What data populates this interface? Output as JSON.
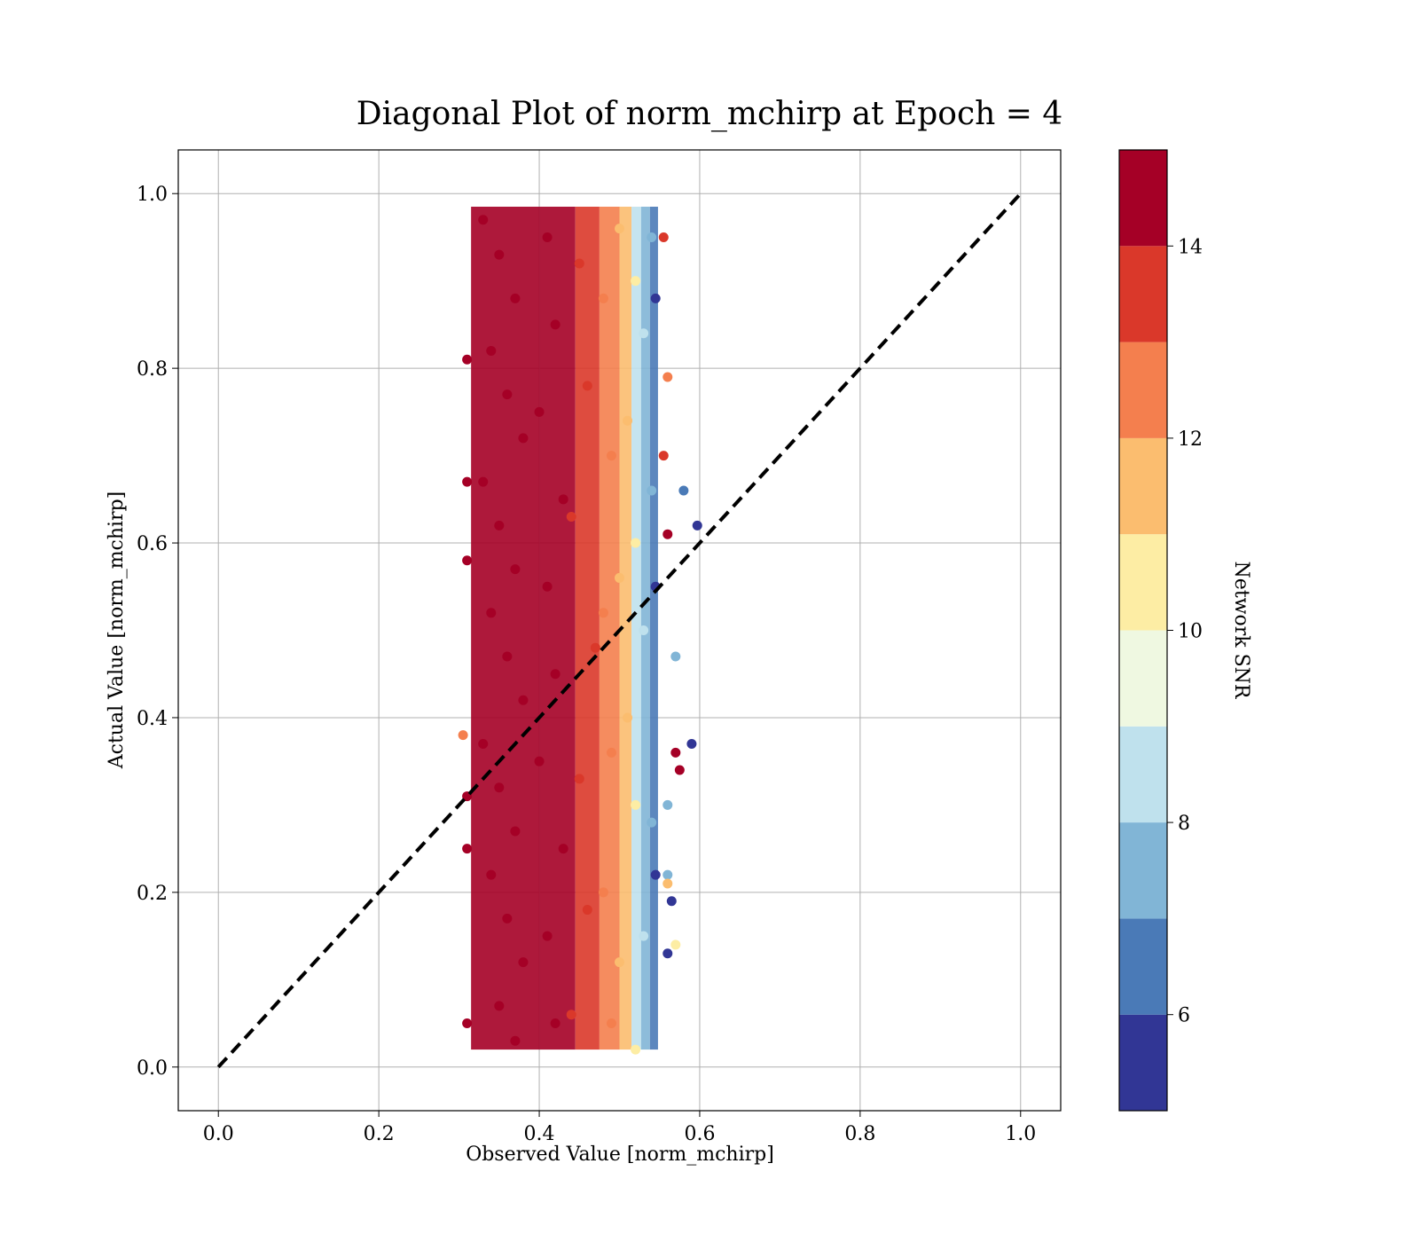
{
  "chart_data": {
    "type": "scatter",
    "title": "Diagonal Plot of norm_mchirp at Epoch = 4",
    "xlabel": "Observed Value [norm_mchirp]",
    "ylabel": "Actual Value [norm_mchirp]",
    "xlim": [
      -0.05,
      1.05
    ],
    "ylim": [
      -0.05,
      1.05
    ],
    "xticks": [
      0.0,
      0.2,
      0.4,
      0.6,
      0.8,
      1.0
    ],
    "yticks": [
      0.0,
      0.2,
      0.4,
      0.6,
      0.8,
      1.0
    ],
    "xtick_labels": [
      "0.0",
      "0.2",
      "0.4",
      "0.6",
      "0.8",
      "1.0"
    ],
    "ytick_labels": [
      "0.0",
      "0.2",
      "0.4",
      "0.6",
      "0.8",
      "1.0"
    ],
    "grid": true,
    "reference_line": {
      "style": "dashed",
      "color": "#000000",
      "x": [
        0.0,
        1.0
      ],
      "y": [
        0.0,
        1.0
      ]
    },
    "colorbar": {
      "label": "Network SNR",
      "range": [
        5,
        15
      ],
      "ticks": [
        6,
        8,
        10,
        12,
        14
      ],
      "tick_labels": [
        "6",
        "8",
        "10",
        "12",
        "14"
      ],
      "bands": [
        {
          "from": 5,
          "to": 6,
          "color": "#313695"
        },
        {
          "from": 6,
          "to": 7,
          "color": "#4a7ab7"
        },
        {
          "from": 7,
          "to": 8,
          "color": "#81b5d6"
        },
        {
          "from": 8,
          "to": 9,
          "color": "#bfe1ed"
        },
        {
          "from": 9,
          "to": 10,
          "color": "#eff8e1"
        },
        {
          "from": 10,
          "to": 11,
          "color": "#fdeda4"
        },
        {
          "from": 11,
          "to": 12,
          "color": "#fbbd6f"
        },
        {
          "from": 12,
          "to": 13,
          "color": "#f47f4e"
        },
        {
          "from": 13,
          "to": 14,
          "color": "#da382a"
        },
        {
          "from": 14,
          "to": 15,
          "color": "#a50026"
        }
      ]
    },
    "points": [
      {
        "x": 0.33,
        "y": 0.97,
        "snr": 15
      },
      {
        "x": 0.35,
        "y": 0.93,
        "snr": 15
      },
      {
        "x": 0.37,
        "y": 0.88,
        "snr": 15
      },
      {
        "x": 0.34,
        "y": 0.82,
        "snr": 15
      },
      {
        "x": 0.36,
        "y": 0.77,
        "snr": 15
      },
      {
        "x": 0.38,
        "y": 0.72,
        "snr": 15
      },
      {
        "x": 0.33,
        "y": 0.67,
        "snr": 15
      },
      {
        "x": 0.35,
        "y": 0.62,
        "snr": 15
      },
      {
        "x": 0.37,
        "y": 0.57,
        "snr": 15
      },
      {
        "x": 0.34,
        "y": 0.52,
        "snr": 15
      },
      {
        "x": 0.36,
        "y": 0.47,
        "snr": 15
      },
      {
        "x": 0.38,
        "y": 0.42,
        "snr": 15
      },
      {
        "x": 0.33,
        "y": 0.37,
        "snr": 15
      },
      {
        "x": 0.35,
        "y": 0.32,
        "snr": 15
      },
      {
        "x": 0.37,
        "y": 0.27,
        "snr": 15
      },
      {
        "x": 0.34,
        "y": 0.22,
        "snr": 15
      },
      {
        "x": 0.36,
        "y": 0.17,
        "snr": 15
      },
      {
        "x": 0.38,
        "y": 0.12,
        "snr": 15
      },
      {
        "x": 0.35,
        "y": 0.07,
        "snr": 15
      },
      {
        "x": 0.37,
        "y": 0.03,
        "snr": 15
      },
      {
        "x": 0.41,
        "y": 0.95,
        "snr": 14.5
      },
      {
        "x": 0.42,
        "y": 0.85,
        "snr": 14.5
      },
      {
        "x": 0.4,
        "y": 0.75,
        "snr": 14.5
      },
      {
        "x": 0.43,
        "y": 0.65,
        "snr": 14.5
      },
      {
        "x": 0.41,
        "y": 0.55,
        "snr": 14.5
      },
      {
        "x": 0.42,
        "y": 0.45,
        "snr": 14.5
      },
      {
        "x": 0.4,
        "y": 0.35,
        "snr": 14.5
      },
      {
        "x": 0.43,
        "y": 0.25,
        "snr": 14.5
      },
      {
        "x": 0.41,
        "y": 0.15,
        "snr": 14.5
      },
      {
        "x": 0.42,
        "y": 0.05,
        "snr": 14.5
      },
      {
        "x": 0.45,
        "y": 0.92,
        "snr": 13.5
      },
      {
        "x": 0.46,
        "y": 0.78,
        "snr": 13.5
      },
      {
        "x": 0.44,
        "y": 0.63,
        "snr": 13.5
      },
      {
        "x": 0.47,
        "y": 0.48,
        "snr": 13.5
      },
      {
        "x": 0.45,
        "y": 0.33,
        "snr": 13.5
      },
      {
        "x": 0.46,
        "y": 0.18,
        "snr": 13.5
      },
      {
        "x": 0.44,
        "y": 0.06,
        "snr": 13.5
      },
      {
        "x": 0.48,
        "y": 0.88,
        "snr": 12.5
      },
      {
        "x": 0.49,
        "y": 0.7,
        "snr": 12.5
      },
      {
        "x": 0.48,
        "y": 0.52,
        "snr": 12.5
      },
      {
        "x": 0.49,
        "y": 0.36,
        "snr": 12.5
      },
      {
        "x": 0.48,
        "y": 0.2,
        "snr": 12.5
      },
      {
        "x": 0.49,
        "y": 0.05,
        "snr": 12.5
      },
      {
        "x": 0.5,
        "y": 0.96,
        "snr": 11.5
      },
      {
        "x": 0.51,
        "y": 0.74,
        "snr": 11.5
      },
      {
        "x": 0.5,
        "y": 0.56,
        "snr": 11.5
      },
      {
        "x": 0.51,
        "y": 0.4,
        "snr": 11.5
      },
      {
        "x": 0.5,
        "y": 0.12,
        "snr": 11.5
      },
      {
        "x": 0.52,
        "y": 0.9,
        "snr": 10.5
      },
      {
        "x": 0.52,
        "y": 0.6,
        "snr": 10.5
      },
      {
        "x": 0.52,
        "y": 0.3,
        "snr": 10.5
      },
      {
        "x": 0.52,
        "y": 0.02,
        "snr": 10.5
      },
      {
        "x": 0.53,
        "y": 0.84,
        "snr": 8.5
      },
      {
        "x": 0.53,
        "y": 0.5,
        "snr": 8.5
      },
      {
        "x": 0.53,
        "y": 0.15,
        "snr": 8.5
      },
      {
        "x": 0.54,
        "y": 0.95,
        "snr": 7.5
      },
      {
        "x": 0.54,
        "y": 0.66,
        "snr": 7.5
      },
      {
        "x": 0.54,
        "y": 0.28,
        "snr": 7.5
      },
      {
        "x": 0.545,
        "y": 0.88,
        "snr": 5.5
      },
      {
        "x": 0.545,
        "y": 0.55,
        "snr": 5.5
      },
      {
        "x": 0.545,
        "y": 0.22,
        "snr": 5.5
      },
      {
        "x": 0.31,
        "y": 0.81,
        "snr": 15
      },
      {
        "x": 0.31,
        "y": 0.67,
        "snr": 15
      },
      {
        "x": 0.31,
        "y": 0.58,
        "snr": 15
      },
      {
        "x": 0.31,
        "y": 0.31,
        "snr": 15
      },
      {
        "x": 0.31,
        "y": 0.25,
        "snr": 15
      },
      {
        "x": 0.31,
        "y": 0.05,
        "snr": 15
      },
      {
        "x": 0.305,
        "y": 0.38,
        "snr": 12.5
      },
      {
        "x": 0.58,
        "y": 0.66,
        "snr": 6.5
      },
      {
        "x": 0.597,
        "y": 0.62,
        "snr": 5.5
      },
      {
        "x": 0.57,
        "y": 0.47,
        "snr": 7.5
      },
      {
        "x": 0.59,
        "y": 0.37,
        "snr": 5.5
      },
      {
        "x": 0.57,
        "y": 0.36,
        "snr": 15
      },
      {
        "x": 0.575,
        "y": 0.34,
        "snr": 15
      },
      {
        "x": 0.56,
        "y": 0.61,
        "snr": 15
      },
      {
        "x": 0.555,
        "y": 0.7,
        "snr": 13.5
      },
      {
        "x": 0.56,
        "y": 0.79,
        "snr": 12.5
      },
      {
        "x": 0.56,
        "y": 0.3,
        "snr": 7.5
      },
      {
        "x": 0.56,
        "y": 0.22,
        "snr": 7.5
      },
      {
        "x": 0.56,
        "y": 0.21,
        "snr": 11.5
      },
      {
        "x": 0.565,
        "y": 0.19,
        "snr": 5.5
      },
      {
        "x": 0.57,
        "y": 0.14,
        "snr": 10.5
      },
      {
        "x": 0.56,
        "y": 0.13,
        "snr": 5.5
      },
      {
        "x": 0.555,
        "y": 0.95,
        "snr": 13.5
      }
    ]
  }
}
